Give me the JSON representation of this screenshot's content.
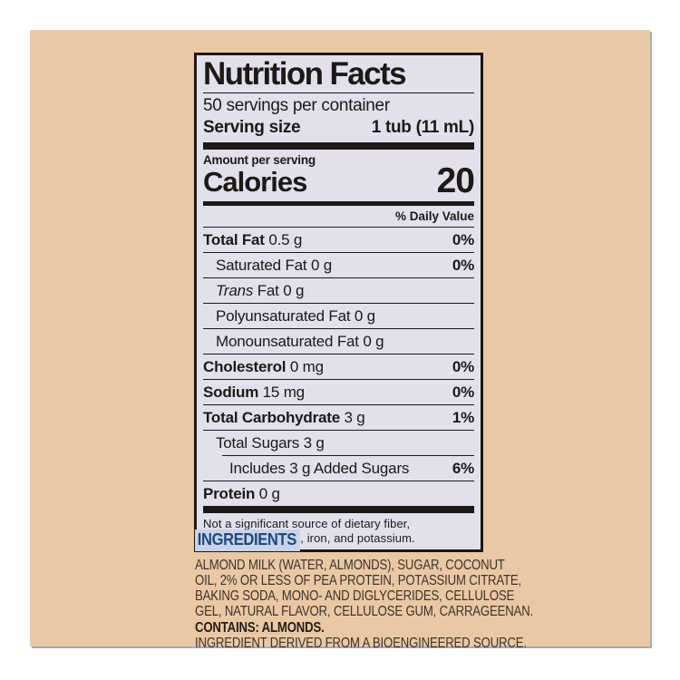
{
  "colors": {
    "page_background": "#ffffff",
    "card_background": "#ebc8a4",
    "label_background": "#e2e0eb",
    "ink": "#1c1917",
    "ingredients_heading_blue": "#1b4a80",
    "ingredients_heading_highlight": "#c9d3e9",
    "ingredients_text": "#3a342e"
  },
  "label": {
    "title": "Nutrition Facts",
    "servings_per_container": "50 servings per container",
    "serving_size_label": "Serving size",
    "serving_size_value": "1 tub (11 mL)",
    "amount_per_serving": "Amount per serving",
    "calories_label": "Calories",
    "calories_value": "20",
    "dv_header": "% Daily Value",
    "rows": [
      {
        "name": "Total Fat",
        "amount": "0.5 g",
        "dv": "0%"
      },
      {
        "name": "Saturated Fat",
        "amount": "0 g",
        "dv": "0%"
      },
      {
        "name": "Trans",
        "rest": "Fat",
        "amount": "0 g",
        "dv": ""
      },
      {
        "name": "Polyunsaturated Fat",
        "amount": "0 g",
        "dv": ""
      },
      {
        "name": "Monounsaturated Fat",
        "amount": "0 g",
        "dv": ""
      },
      {
        "name": "Cholesterol",
        "amount": "0 mg",
        "dv": "0%"
      },
      {
        "name": "Sodium",
        "amount": "15 mg",
        "dv": "0%"
      },
      {
        "name": "Total Carbohydrate",
        "amount": "3 g",
        "dv": "1%"
      },
      {
        "name": "Total Sugars",
        "amount": "3 g",
        "dv": ""
      },
      {
        "name": "Includes 3 g Added Sugars",
        "amount": "",
        "dv": "6%"
      },
      {
        "name": "Protein",
        "amount": "0 g",
        "dv": ""
      }
    ],
    "footnote_line1": "Not a significant source of dietary fiber,",
    "footnote_line2": "vitamin D, calcium, iron, and potassium."
  },
  "ingredients": {
    "heading": "INGREDIENTS",
    "lines": [
      "ALMOND MILK (WATER, ALMONDS), SUGAR, COCONUT",
      "OIL, 2% OR LESS OF PEA PROTEIN, POTASSIUM CITRATE,",
      "BAKING SODA, MONO- AND DIGLYCERIDES, CELLULOSE",
      "GEL, NATURAL FLAVOR, CELLULOSE GUM, CARRAGEENAN."
    ],
    "contains": "CONTAINS: ALMONDS.",
    "bioengineered": "INGREDIENT DERIVED FROM A BIOENGINEERED SOURCE."
  }
}
